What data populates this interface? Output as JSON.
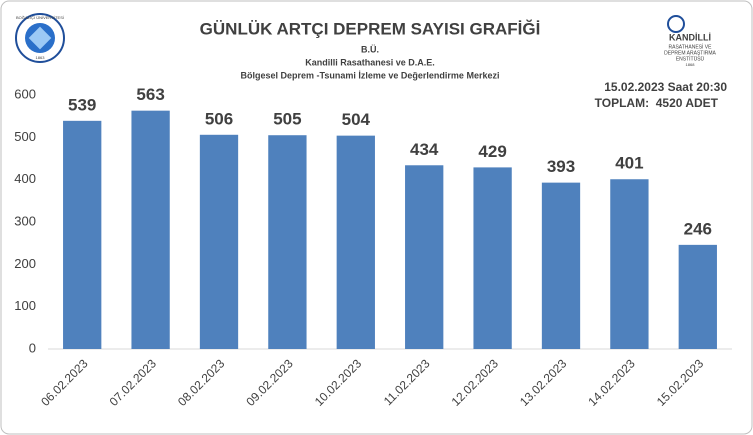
{
  "chart_data": {
    "type": "bar",
    "title": "GÜNLÜK ARTÇI DEPREM SAYISI GRAFİĞİ",
    "subtitles": [
      "B.Ü.",
      "Kandilli Rasathanesi ve D.A.E.",
      "Bölgesel Deprem -Tsunami İzleme ve Değerlendirme Merkezi"
    ],
    "annotations": [
      "15.02.2023 Saat 20:30",
      "TOPLAM:  4520 ADET"
    ],
    "left_logo": {
      "text": "BOĞAZİÇİ ÜNİVERSİTESİ",
      "year": "1863"
    },
    "right_logo": {
      "lines": [
        "KANDİLLİ",
        "RASATHANESİ VE",
        "DEPREM ARAŞTIRMA",
        "ENSTİTÜSÜ",
        "1868"
      ]
    },
    "categories": [
      "06.02.2023",
      "07.02.2023",
      "08.02.2023",
      "09.02.2023",
      "10.02.2023",
      "11.02.2023",
      "12.02.2023",
      "13.02.2023",
      "14.02.2023",
      "15.02.2023"
    ],
    "values": [
      539,
      563,
      506,
      505,
      504,
      434,
      429,
      393,
      401,
      246
    ],
    "color": "#4f81bd",
    "ylim": [
      0,
      600
    ],
    "yticks": [
      0,
      100,
      200,
      300,
      400,
      500,
      600
    ],
    "grid": false
  }
}
